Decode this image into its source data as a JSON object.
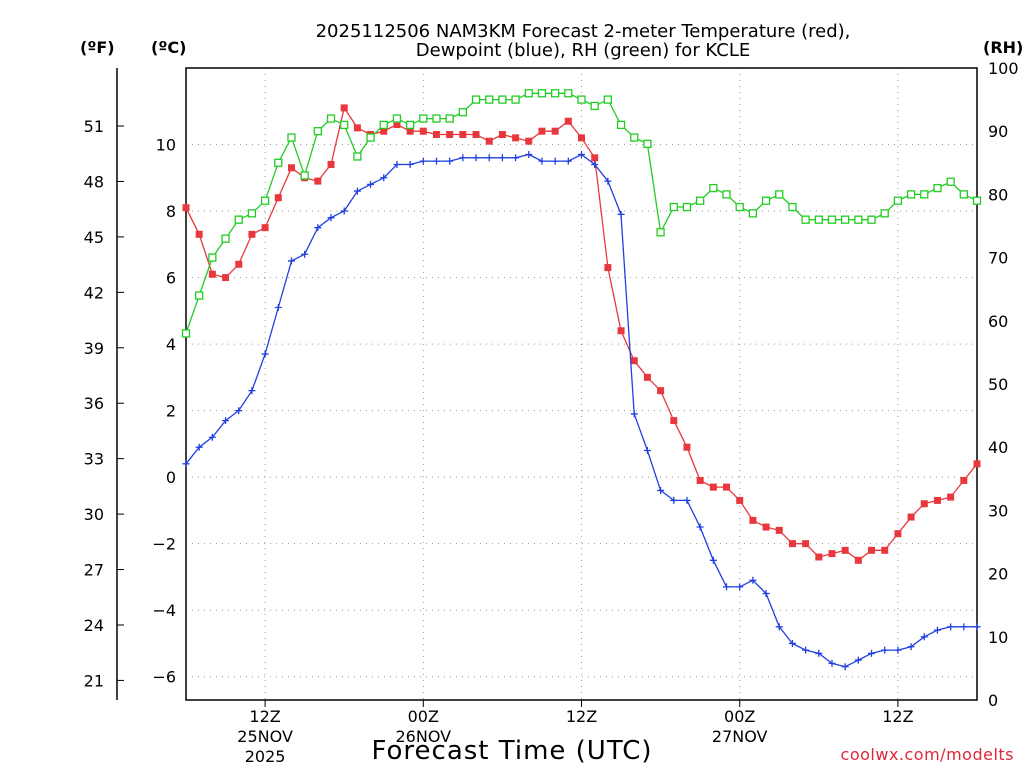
{
  "chart_data": {
    "type": "line",
    "title_line1": "2025112506 NAM3KM Forecast 2-meter Temperature (red),",
    "title_line2": "Dewpoint (blue), RH (green) for KCLE",
    "left_unit_f": "(ºF)",
    "left_unit_c": "(ºC)",
    "right_unit": "(RH)",
    "xlabel": "Forecast Time (UTC)",
    "credit": "coolwx.com/modelts",
    "x_range_hours": [
      6,
      66
    ],
    "ylim_c": [
      -6.7,
      12.3
    ],
    "ylim_rh": [
      0,
      100
    ],
    "f_ticks": [
      "21",
      "24",
      "27",
      "30",
      "33",
      "36",
      "39",
      "42",
      "45",
      "48",
      "51"
    ],
    "c_ticks": [
      "-6",
      "-4",
      "-2",
      "0",
      "2",
      "4",
      "6",
      "8",
      "10"
    ],
    "rh_ticks": [
      "0",
      "10",
      "20",
      "30",
      "40",
      "50",
      "60",
      "70",
      "80",
      "90",
      "100"
    ],
    "x_ticks": [
      {
        "hour": 12,
        "label": "12Z",
        "sub1": "25NOV",
        "sub2": "2025"
      },
      {
        "hour": 24,
        "label": "00Z",
        "sub1": "26NOV",
        "sub2": ""
      },
      {
        "hour": 36,
        "label": "12Z",
        "sub1": "",
        "sub2": ""
      },
      {
        "hour": 48,
        "label": "00Z",
        "sub1": "27NOV",
        "sub2": ""
      },
      {
        "hour": 60,
        "label": "12Z",
        "sub1": "",
        "sub2": ""
      }
    ],
    "grid": true,
    "series": [
      {
        "name": "Temperature",
        "color": "#e8383d",
        "marker": "filled-square",
        "axis": "c",
        "x": [
          6,
          7,
          8,
          9,
          10,
          11,
          12,
          13,
          14,
          15,
          16,
          17,
          18,
          19,
          20,
          21,
          22,
          23,
          24,
          25,
          26,
          27,
          28,
          29,
          30,
          31,
          32,
          33,
          34,
          35,
          36,
          37,
          38,
          39,
          40,
          41,
          42,
          43,
          44,
          45,
          46,
          47,
          48,
          49,
          50,
          51,
          52,
          53,
          54,
          55,
          56,
          57,
          58,
          59,
          60,
          61,
          62,
          63,
          64,
          65,
          66
        ],
        "values": [
          8.1,
          7.3,
          6.1,
          6.0,
          6.4,
          7.3,
          7.5,
          8.4,
          9.3,
          9.0,
          8.9,
          9.4,
          11.1,
          10.5,
          10.3,
          10.4,
          10.6,
          10.4,
          10.4,
          10.3,
          10.3,
          10.3,
          10.3,
          10.1,
          10.3,
          10.2,
          10.1,
          10.4,
          10.4,
          10.7,
          10.2,
          9.6,
          6.3,
          4.4,
          3.5,
          3.0,
          2.6,
          1.7,
          0.9,
          -0.1,
          -0.3,
          -0.3,
          -0.7,
          -1.3,
          -1.5,
          -1.6,
          -2.0,
          -2.0,
          -2.4,
          -2.3,
          -2.2,
          -2.5,
          -2.2,
          -2.2,
          -1.7,
          -1.2,
          -0.8,
          -0.7,
          -0.6,
          -0.1,
          0.4
        ],
        "points_visible_to_hour": 66
      },
      {
        "name": "Dewpoint",
        "color": "#2040e0",
        "marker": "plus",
        "axis": "c",
        "x": [
          6,
          7,
          8,
          9,
          10,
          11,
          12,
          13,
          14,
          15,
          16,
          17,
          18,
          19,
          20,
          21,
          22,
          23,
          24,
          25,
          26,
          27,
          28,
          29,
          30,
          31,
          32,
          33,
          34,
          35,
          36,
          37,
          38,
          39,
          40,
          41,
          42,
          43,
          44,
          45,
          46,
          47,
          48,
          49,
          50,
          51,
          52,
          53,
          54,
          55,
          56,
          57,
          58,
          59,
          60,
          61,
          62,
          63,
          64,
          65,
          66
        ],
        "values": [
          0.4,
          0.9,
          1.2,
          1.7,
          2.0,
          2.6,
          3.7,
          5.1,
          6.5,
          6.7,
          7.5,
          7.8,
          8.0,
          8.6,
          8.8,
          9.0,
          9.4,
          9.4,
          9.5,
          9.5,
          9.5,
          9.6,
          9.6,
          9.6,
          9.6,
          9.6,
          9.7,
          9.5,
          9.5,
          9.5,
          9.7,
          9.4,
          8.9,
          7.9,
          1.9,
          0.8,
          -0.4,
          -0.7,
          -0.7,
          -1.5,
          -2.5,
          -3.3,
          -3.3,
          -3.1,
          -3.5,
          -4.5,
          -5.0,
          -5.2,
          -5.3,
          -5.6,
          -5.7,
          -5.5,
          -5.3,
          -5.2,
          -5.2,
          -5.1,
          -4.8,
          -4.6,
          -4.5,
          -4.5,
          -4.5
        ]
      },
      {
        "name": "RH",
        "color": "#22cc22",
        "marker": "open-square",
        "axis": "rh",
        "x": [
          6,
          7,
          8,
          9,
          10,
          11,
          12,
          13,
          14,
          15,
          16,
          17,
          18,
          19,
          20,
          21,
          22,
          23,
          24,
          25,
          26,
          27,
          28,
          29,
          30,
          31,
          32,
          33,
          34,
          35,
          36,
          37,
          38,
          39,
          40,
          41,
          42,
          43,
          44,
          45,
          46,
          47,
          48,
          49,
          50,
          51,
          52,
          53,
          54,
          55,
          56,
          57,
          58,
          59,
          60,
          61,
          62,
          63,
          64,
          65,
          66
        ],
        "values": [
          58,
          64,
          70,
          73,
          76,
          77,
          79,
          85,
          89,
          83,
          90,
          92,
          91,
          86,
          89,
          91,
          92,
          91,
          92,
          92,
          92,
          93,
          95,
          95,
          95,
          95,
          96,
          96,
          96,
          96,
          95,
          94,
          95,
          91,
          89,
          88,
          74,
          78,
          78,
          79,
          81,
          80,
          78,
          77,
          79,
          80,
          78,
          76,
          76,
          76,
          76,
          76,
          76,
          77,
          79,
          80,
          80,
          81,
          82,
          80,
          79
        ]
      }
    ]
  }
}
